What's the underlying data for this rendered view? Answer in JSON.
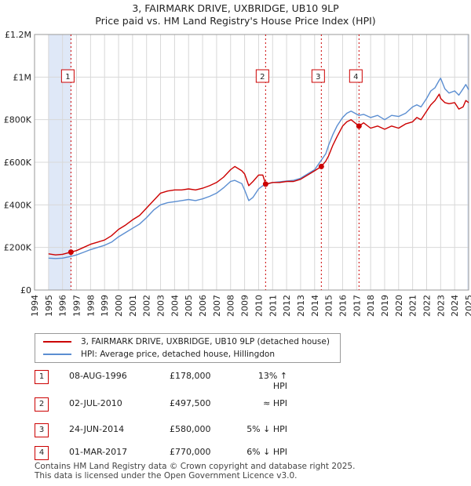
{
  "title_line1": "3, FAIRMARK DRIVE, UXBRIDGE, UB10 9LP",
  "title_line2": "Price paid vs. HM Land Registry's House Price Index (HPI)",
  "colors": {
    "red": "#cc0000",
    "blue": "#5b8ed1",
    "shade": "#dfe8f7",
    "grid": "#d8d8d8"
  },
  "legend": {
    "red_label": "3, FAIRMARK DRIVE, UXBRIDGE, UB10 9LP (detached house)",
    "blue_label": "HPI: Average price, detached house, Hillingdon"
  },
  "sales": [
    {
      "num": "1",
      "date": "08-AUG-1996",
      "price": "£178,000",
      "hpi": "13% ↑ HPI"
    },
    {
      "num": "2",
      "date": "02-JUL-2010",
      "price": "£497,500",
      "hpi": "≈ HPI"
    },
    {
      "num": "3",
      "date": "24-JUN-2014",
      "price": "£580,000",
      "hpi": "5% ↓ HPI"
    },
    {
      "num": "4",
      "date": "01-MAR-2017",
      "price": "£770,000",
      "hpi": "6% ↓ HPI"
    }
  ],
  "footer_line1": "Contains HM Land Registry data © Crown copyright and database right 2025.",
  "footer_line2": "This data is licensed under the Open Government Licence v3.0.",
  "chart_data": {
    "type": "line",
    "x_range": [
      1995.0,
      2025.0
    ],
    "ylim": [
      0,
      1200000
    ],
    "y_ticks": [
      {
        "value": 0,
        "label": "£0"
      },
      {
        "value": 200000,
        "label": "£200K"
      },
      {
        "value": 400000,
        "label": "£400K"
      },
      {
        "value": 600000,
        "label": "£600K"
      },
      {
        "value": 800000,
        "label": "£800K"
      },
      {
        "value": 1000000,
        "label": "£1M"
      },
      {
        "value": 1200000,
        "label": "£1.2M"
      }
    ],
    "x_ticks": [
      "1994",
      "1995",
      "1996",
      "1997",
      "1998",
      "1999",
      "2000",
      "2001",
      "2002",
      "2003",
      "2004",
      "2005",
      "2006",
      "2007",
      "2008",
      "2009",
      "2010",
      "2011",
      "2012",
      "2013",
      "2014",
      "2015",
      "2016",
      "2017",
      "2018",
      "2019",
      "2020",
      "2021",
      "2022",
      "2023",
      "2024",
      "2025"
    ],
    "x_tick_start": 1994,
    "grid": true,
    "shaded_ranges": [
      [
        1995.0,
        1996.6
      ],
      [
        2024.9,
        2025.0
      ]
    ],
    "sale_markers": [
      {
        "label": "1",
        "x": 1996.6,
        "y": 178000
      },
      {
        "label": "2",
        "x": 2010.5,
        "y": 497500
      },
      {
        "label": "3",
        "x": 2014.48,
        "y": 580000
      },
      {
        "label": "4",
        "x": 2017.17,
        "y": 770000
      }
    ],
    "series": [
      {
        "name": "3, FAIRMARK DRIVE, UXBRIDGE, UB10 9LP (detached house)",
        "color": "#cc0000",
        "x": [
          1995.0,
          1995.5,
          1996.0,
          1996.6,
          1997.0,
          1997.5,
          1998.0,
          1998.5,
          1999.0,
          1999.5,
          2000.0,
          2000.5,
          2001.0,
          2001.5,
          2002.0,
          2002.5,
          2003.0,
          2003.5,
          2004.0,
          2004.5,
          2005.0,
          2005.5,
          2006.0,
          2006.5,
          2007.0,
          2007.5,
          2008.0,
          2008.3,
          2008.8,
          2009.0,
          2009.3,
          2009.6,
          2010.0,
          2010.3,
          2010.5,
          2011.0,
          2011.5,
          2012.0,
          2012.5,
          2013.0,
          2013.5,
          2014.0,
          2014.48,
          2014.8,
          2015.0,
          2015.3,
          2015.6,
          2016.0,
          2016.3,
          2016.6,
          2017.17,
          2017.5,
          2018.0,
          2018.5,
          2019.0,
          2019.5,
          2020.0,
          2020.5,
          2021.0,
          2021.3,
          2021.6,
          2022.0,
          2022.3,
          2022.6,
          2022.9,
          2023.0,
          2023.3,
          2023.6,
          2024.0,
          2024.3,
          2024.6,
          2024.8,
          2025.0
        ],
        "y": [
          170000,
          165000,
          168000,
          178000,
          185000,
          200000,
          215000,
          225000,
          235000,
          255000,
          285000,
          305000,
          330000,
          350000,
          385000,
          420000,
          455000,
          465000,
          470000,
          470000,
          475000,
          470000,
          478000,
          490000,
          505000,
          530000,
          565000,
          580000,
          560000,
          545000,
          490000,
          510000,
          540000,
          540000,
          497500,
          505000,
          505000,
          510000,
          510000,
          520000,
          540000,
          560000,
          580000,
          605000,
          630000,
          680000,
          720000,
          770000,
          790000,
          800000,
          770000,
          785000,
          760000,
          770000,
          755000,
          770000,
          760000,
          780000,
          790000,
          810000,
          800000,
          840000,
          870000,
          890000,
          920000,
          900000,
          880000,
          875000,
          880000,
          850000,
          860000,
          890000,
          880000
        ]
      },
      {
        "name": "HPI: Average price, detached house, Hillingdon",
        "color": "#5b8ed1",
        "x": [
          1995.0,
          1995.5,
          1996.0,
          1996.6,
          1997.0,
          1997.5,
          1998.0,
          1998.5,
          1999.0,
          1999.5,
          2000.0,
          2000.5,
          2001.0,
          2001.5,
          2002.0,
          2002.5,
          2003.0,
          2003.5,
          2004.0,
          2004.5,
          2005.0,
          2005.5,
          2006.0,
          2006.5,
          2007.0,
          2007.5,
          2008.0,
          2008.3,
          2008.8,
          2009.0,
          2009.3,
          2009.6,
          2010.0,
          2010.3,
          2010.5,
          2011.0,
          2011.5,
          2012.0,
          2012.5,
          2013.0,
          2013.5,
          2014.0,
          2014.48,
          2014.8,
          2015.0,
          2015.3,
          2015.6,
          2016.0,
          2016.3,
          2016.6,
          2017.17,
          2017.5,
          2018.0,
          2018.5,
          2019.0,
          2019.5,
          2020.0,
          2020.5,
          2021.0,
          2021.3,
          2021.6,
          2022.0,
          2022.3,
          2022.6,
          2022.9,
          2023.0,
          2023.3,
          2023.6,
          2024.0,
          2024.3,
          2024.6,
          2024.8,
          2025.0
        ],
        "y": [
          150000,
          148000,
          150000,
          158000,
          165000,
          177000,
          190000,
          200000,
          210000,
          225000,
          250000,
          270000,
          290000,
          310000,
          340000,
          375000,
          400000,
          410000,
          415000,
          420000,
          425000,
          420000,
          428000,
          440000,
          455000,
          480000,
          510000,
          515000,
          500000,
          470000,
          420000,
          435000,
          475000,
          490000,
          495000,
          505000,
          508000,
          512000,
          515000,
          525000,
          545000,
          565000,
          610000,
          640000,
          680000,
          730000,
          770000,
          810000,
          830000,
          840000,
          820000,
          825000,
          810000,
          820000,
          800000,
          820000,
          815000,
          830000,
          860000,
          870000,
          860000,
          900000,
          935000,
          950000,
          985000,
          995000,
          945000,
          925000,
          935000,
          915000,
          945000,
          965000,
          940000
        ]
      }
    ]
  }
}
